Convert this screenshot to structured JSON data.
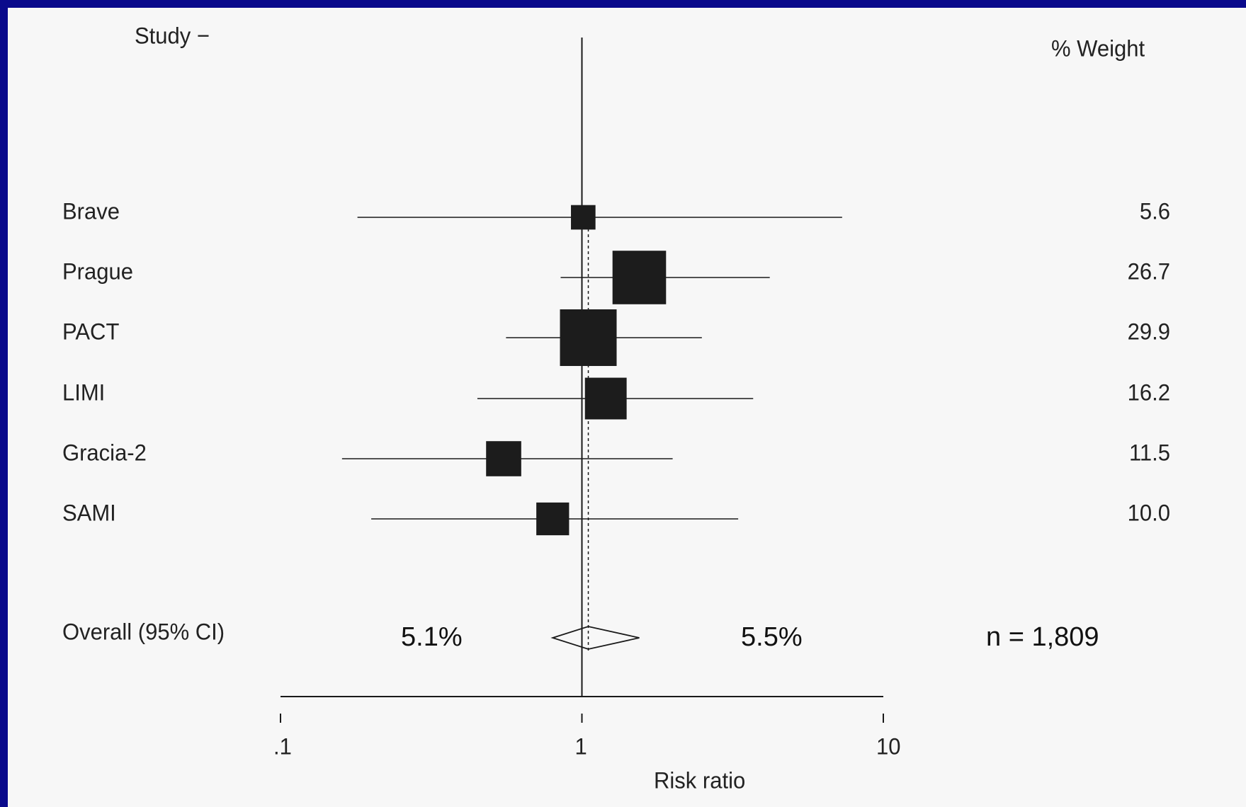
{
  "chart_data": {
    "type": "forest",
    "header_left": "Study −",
    "header_right": "% Weight",
    "xlabel": "Risk ratio",
    "x_scale": "log",
    "xlim": [
      0.1,
      10
    ],
    "x_ticks": [
      ".1",
      "1",
      "10"
    ],
    "x_tick_values": [
      0.1,
      1,
      10
    ],
    "reference_line": 1,
    "pooled_estimate_line": 1.05,
    "studies": [
      {
        "name": "Brave",
        "rr": 1.01,
        "ci_low": 0.18,
        "ci_high": 7.3,
        "weight": "5.6"
      },
      {
        "name": "Prague",
        "rr": 1.55,
        "ci_low": 0.85,
        "ci_high": 4.2,
        "weight": "26.7"
      },
      {
        "name": "PACT",
        "rr": 1.05,
        "ci_low": 0.56,
        "ci_high": 2.5,
        "weight": "29.9"
      },
      {
        "name": "LIMI",
        "rr": 1.2,
        "ci_low": 0.45,
        "ci_high": 3.7,
        "weight": "16.2"
      },
      {
        "name": "Gracia-2",
        "rr": 0.55,
        "ci_low": 0.16,
        "ci_high": 2.0,
        "weight": "11.5"
      },
      {
        "name": "SAMI",
        "rr": 0.8,
        "ci_low": 0.2,
        "ci_high": 3.3,
        "weight": "10.0"
      }
    ],
    "overall": {
      "label": "Overall (95% CI)",
      "rr": 1.05,
      "ci_low": 0.8,
      "ci_high": 1.55
    },
    "annotations": {
      "left": "5.1%",
      "right": "5.5%",
      "n": "n = 1,809"
    }
  },
  "colors": {
    "background": "#0a0a8c",
    "panel": "#f7f7f7",
    "ink": "#1a1a1a"
  }
}
